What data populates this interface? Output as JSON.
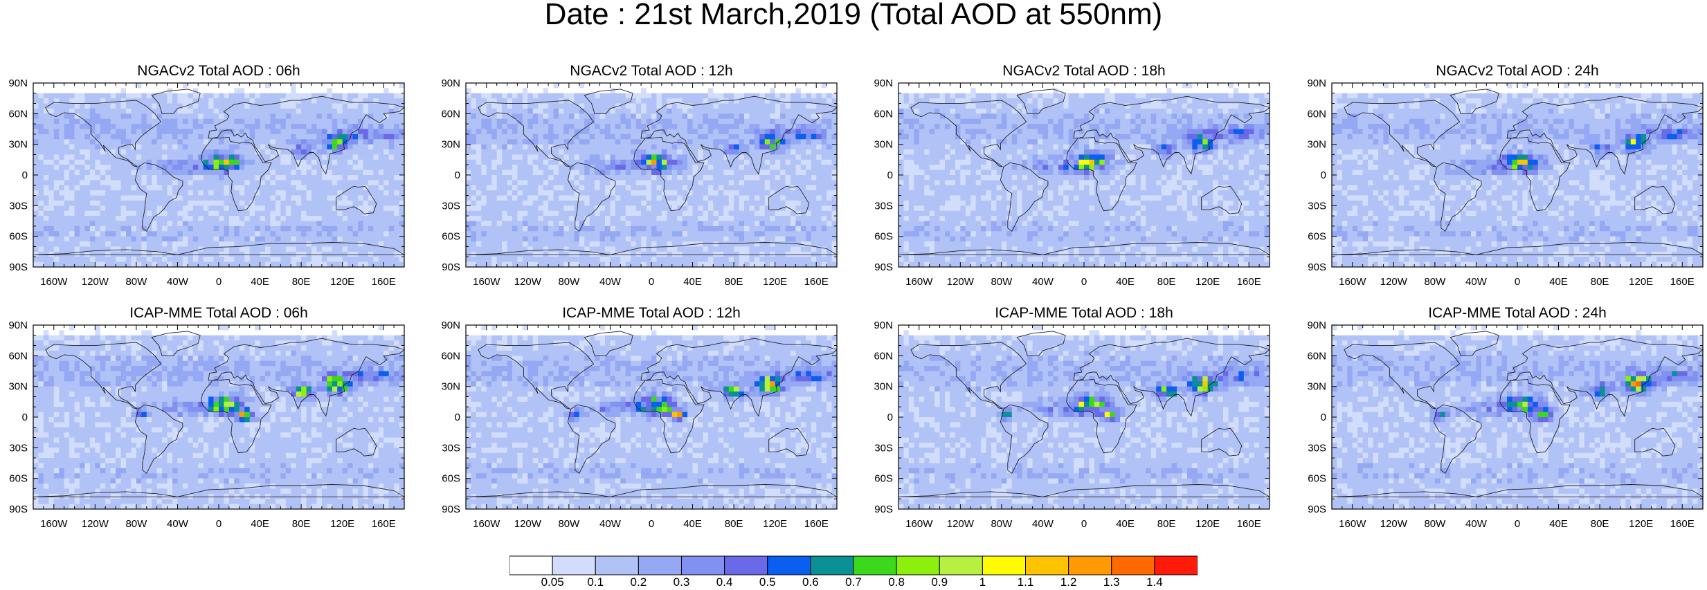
{
  "title": "Date : 21st March,2019 (Total AOD at 550nm)",
  "panels": [
    {
      "title": "NGACv2 Total AOD : 06h",
      "model": "NGACv2",
      "hour": "06h"
    },
    {
      "title": "NGACv2 Total AOD : 12h",
      "model": "NGACv2",
      "hour": "12h"
    },
    {
      "title": "NGACv2 Total AOD : 18h",
      "model": "NGACv2",
      "hour": "18h"
    },
    {
      "title": "NGACv2 Total AOD : 24h",
      "model": "NGACv2",
      "hour": "24h"
    },
    {
      "title": "ICAP-MME Total AOD : 06h",
      "model": "ICAP-MME",
      "hour": "06h"
    },
    {
      "title": "ICAP-MME Total AOD : 12h",
      "model": "ICAP-MME",
      "hour": "12h"
    },
    {
      "title": "ICAP-MME Total AOD : 18h",
      "model": "ICAP-MME",
      "hour": "18h"
    },
    {
      "title": "ICAP-MME Total AOD : 24h",
      "model": "ICAP-MME",
      "hour": "24h"
    }
  ],
  "axes": {
    "lat_ticks": [
      "90N",
      "60N",
      "30N",
      "0",
      "30S",
      "60S",
      "90S"
    ],
    "lon_ticks": [
      "160W",
      "120W",
      "80W",
      "40W",
      "0",
      "40E",
      "80E",
      "120E",
      "160E"
    ]
  },
  "colorbar": {
    "colors": [
      "#ffffff",
      "#d2ddfb",
      "#b1c2f6",
      "#94a8f3",
      "#8191f2",
      "#6a6ae8",
      "#0a5ef0",
      "#0b9096",
      "#3cd81e",
      "#8cf00c",
      "#b8f041",
      "#fffb05",
      "#ffc400",
      "#ff9a00",
      "#ff6a00",
      "#ff1a0a"
    ],
    "labels": [
      "0.05",
      "0.1",
      "0.2",
      "0.3",
      "0.4",
      "0.5",
      "0.6",
      "0.7",
      "0.8",
      "0.9",
      "1",
      "1.1",
      "1.2",
      "1.3",
      "1.4"
    ]
  }
}
